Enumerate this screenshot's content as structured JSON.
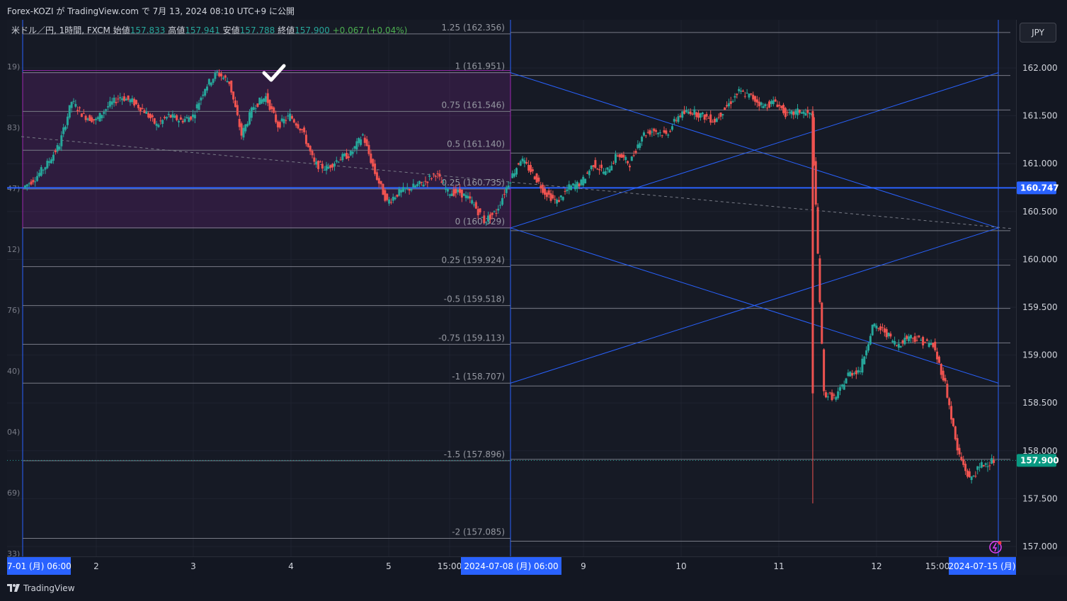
{
  "header": {
    "publish_line": "Forex-KOZI が TradingView.com で 7月 13, 2024 08:10 UTC+9 に公開"
  },
  "legend": {
    "symbol": "米ドル／円, 1時間, FXCM",
    "open_label": "始値",
    "open": "157.833",
    "high_label": "高値",
    "high": "157.941",
    "low_label": "安値",
    "low": "157.788",
    "close_label": "終値",
    "close": "157.900",
    "change": "+0.067 (+0.04%)"
  },
  "price_scale": {
    "currency_button": "JPY",
    "current_price_label": "157.900",
    "crosshair_label": "160.747",
    "ticks": [
      "162.000",
      "161.500",
      "161.000",
      "160.500",
      "160.000",
      "159.500",
      "159.000",
      "158.500",
      "158.000",
      "157.500",
      "157.000"
    ]
  },
  "time_scale": {
    "ticks": [
      "2",
      "3",
      "4",
      "5",
      "15:00",
      "9",
      "10",
      "11",
      "12",
      "15:00"
    ],
    "left_date_label": "7-01 (月)   06:00",
    "mid_date_label": "2024-07-08 (月)   06:00",
    "right_date_label": "2024-07-15 (月)"
  },
  "left_partial_labels": [
    "19)",
    "83)",
    "47)",
    "12)",
    "76)",
    "40)",
    "04)",
    "69)",
    "33)"
  ],
  "fib_labels": [
    "1.25 (162.356)",
    "1 (161.951)",
    "0.75 (161.546)",
    "0.5 (161.140)",
    "0.25 (160.735)",
    "0 (160.329)",
    "0.25 (159.924)",
    "-0.5 (159.518)",
    "-0.75 (159.113)",
    "-1 (158.707)",
    "-1.5 (157.896)",
    "-2 (157.085)"
  ],
  "footer": {
    "brand": "TradingView"
  },
  "colors": {
    "up": "#26a69a",
    "down": "#ef5350",
    "box": "#9c27b0",
    "trend": "#2962ff",
    "background": "#161a25"
  },
  "chart_data": {
    "type": "candlestick",
    "symbol": "米ドル／円",
    "timeframe": "1時間",
    "ylim": [
      156.95,
      162.5
    ],
    "x_range": [
      "2024-07-01",
      "2024-07-15"
    ],
    "fibonacci_levels": [
      {
        "level": "1.25",
        "price": 162.356
      },
      {
        "level": "1",
        "price": 161.951
      },
      {
        "level": "0.75",
        "price": 161.546
      },
      {
        "level": "0.5",
        "price": 161.14
      },
      {
        "level": "0.25",
        "price": 160.735
      },
      {
        "level": "0",
        "price": 160.329
      },
      {
        "level": "0.25",
        "price": 159.924
      },
      {
        "level": "-0.5",
        "price": 159.518
      },
      {
        "level": "-0.75",
        "price": 159.113
      },
      {
        "level": "-1",
        "price": 158.707
      },
      {
        "level": "-1.5",
        "price": 157.896
      },
      {
        "level": "-2",
        "price": 157.085
      }
    ],
    "current_price": 157.9,
    "marked_level": 160.747,
    "box_range": [
      160.329,
      161.951
    ],
    "approx_close_path": [
      160.75,
      160.85,
      161.0,
      161.2,
      161.65,
      161.5,
      161.45,
      161.6,
      161.7,
      161.65,
      161.55,
      161.4,
      161.5,
      161.45,
      161.5,
      161.8,
      161.95,
      161.85,
      161.3,
      161.6,
      161.7,
      161.4,
      161.5,
      161.35,
      161.0,
      160.95,
      161.05,
      161.1,
      161.3,
      160.9,
      160.6,
      160.7,
      160.75,
      160.8,
      160.9,
      160.7,
      160.7,
      160.6,
      160.4,
      160.5,
      160.8,
      161.05,
      160.9,
      160.7,
      160.6,
      160.75,
      160.8,
      161.0,
      160.9,
      161.1,
      161.0,
      161.3,
      161.35,
      161.3,
      161.5,
      161.55,
      161.5,
      161.45,
      161.6,
      161.75,
      161.7,
      161.6,
      161.65,
      161.5,
      161.55,
      161.5,
      158.6,
      158.55,
      158.8,
      158.85,
      159.3,
      159.25,
      159.1,
      159.2,
      159.15,
      159.1,
      158.7,
      158.0,
      157.7,
      157.85,
      157.9
    ]
  }
}
